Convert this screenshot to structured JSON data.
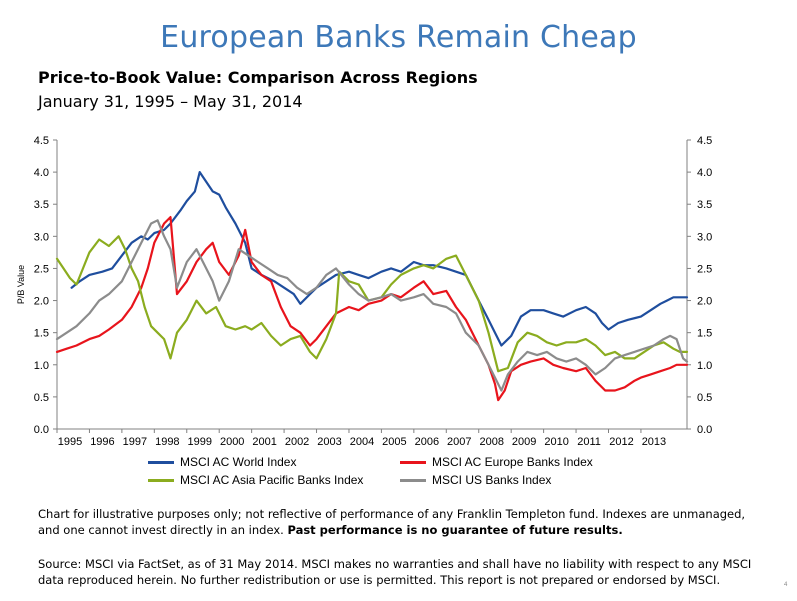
{
  "header": {
    "title": "European Banks Remain Cheap",
    "subtitle": "Price-to-Book Value: Comparison Across Regions",
    "date_range": "January 31, 1995 – May 31, 2014"
  },
  "footer": {
    "note": "Chart for illustrative purposes only; not reflective of performance of any Franklin Templeton fund. Indexes are unmanaged, and one cannot invest directly in an index.",
    "note_bold": "Past performance is no guarantee of future results.",
    "source": "Source: MSCI via FactSet, as of 31 May 2014. MSCI makes no warranties and shall have no liability with respect to any MSCI data reproduced herein. No further redistribution or use is permitted. This report is not prepared or endorsed by MSCI.",
    "page_number": "4"
  },
  "chart_data": {
    "type": "line",
    "ylabel": "P/B Value",
    "ylim": [
      0,
      4.5
    ],
    "yticks": [
      "0.0",
      "0.5",
      "1.0",
      "1.5",
      "2.0",
      "2.5",
      "3.0",
      "3.5",
      "4.0",
      "4.5"
    ],
    "xlim": [
      1995.0,
      2014.42
    ],
    "xticks": [
      "1995",
      "1996",
      "1997",
      "1998",
      "1999",
      "2000",
      "2001",
      "2002",
      "2003",
      "2004",
      "2005",
      "2006",
      "2007",
      "2008",
      "2009",
      "2010",
      "2011",
      "2012",
      "2013"
    ],
    "grid": false,
    "legend_position": "bottom",
    "series": [
      {
        "name": "MSCI AC World Index",
        "color": "#1f4e9e",
        "x": [
          1995.45,
          1995.7,
          1996.0,
          1996.4,
          1996.7,
          1997.0,
          1997.3,
          1997.6,
          1997.8,
          1998.0,
          1998.3,
          1998.5,
          1998.8,
          1999.0,
          1999.25,
          1999.4,
          1999.6,
          1999.8,
          2000.0,
          2000.2,
          2000.5,
          2000.8,
          2001.0,
          2001.3,
          2001.7,
          2002.0,
          2002.3,
          2002.5,
          2002.8,
          2003.0,
          2003.3,
          2003.6,
          2004.0,
          2004.3,
          2004.6,
          2005.0,
          2005.3,
          2005.6,
          2006.0,
          2006.3,
          2006.6,
          2007.0,
          2007.3,
          2007.6,
          2008.0,
          2008.3,
          2008.5,
          2008.7,
          2009.0,
          2009.3,
          2009.6,
          2010.0,
          2010.3,
          2010.6,
          2011.0,
          2011.3,
          2011.6,
          2011.8,
          2012.0,
          2012.3,
          2012.6,
          2013.0,
          2013.3,
          2013.6,
          2013.8,
          2014.0,
          2014.2,
          2014.42
        ],
        "values": [
          2.2,
          2.3,
          2.4,
          2.45,
          2.5,
          2.7,
          2.9,
          3.0,
          2.95,
          3.05,
          3.1,
          3.2,
          3.4,
          3.55,
          3.7,
          4.0,
          3.85,
          3.7,
          3.65,
          3.45,
          3.2,
          2.9,
          2.5,
          2.4,
          2.3,
          2.2,
          2.1,
          1.95,
          2.1,
          2.2,
          2.3,
          2.4,
          2.45,
          2.4,
          2.35,
          2.45,
          2.5,
          2.45,
          2.6,
          2.55,
          2.55,
          2.5,
          2.45,
          2.4,
          2.0,
          1.7,
          1.5,
          1.3,
          1.45,
          1.75,
          1.85,
          1.85,
          1.8,
          1.75,
          1.85,
          1.9,
          1.8,
          1.65,
          1.55,
          1.65,
          1.7,
          1.75,
          1.85,
          1.95,
          2.0,
          2.05,
          2.05,
          2.05
        ]
      },
      {
        "name": "MSCI AC Europe Banks Index",
        "color": "#e8141c",
        "x": [
          1995.0,
          1995.3,
          1995.6,
          1996.0,
          1996.3,
          1996.6,
          1997.0,
          1997.3,
          1997.6,
          1997.8,
          1998.0,
          1998.3,
          1998.5,
          1998.7,
          1999.0,
          1999.3,
          1999.6,
          1999.8,
          2000.0,
          2000.3,
          2000.6,
          2000.8,
          2001.0,
          2001.3,
          2001.6,
          2001.9,
          2002.2,
          2002.5,
          2002.8,
          2003.0,
          2003.3,
          2003.6,
          2004.0,
          2004.3,
          2004.6,
          2005.0,
          2005.3,
          2005.6,
          2006.0,
          2006.3,
          2006.6,
          2007.0,
          2007.3,
          2007.6,
          2008.0,
          2008.3,
          2008.5,
          2008.6,
          2008.8,
          2009.0,
          2009.3,
          2009.6,
          2010.0,
          2010.3,
          2010.6,
          2011.0,
          2011.3,
          2011.6,
          2011.9,
          2012.2,
          2012.5,
          2012.8,
          2013.0,
          2013.3,
          2013.6,
          2013.9,
          2014.1,
          2014.42
        ],
        "values": [
          1.2,
          1.25,
          1.3,
          1.4,
          1.45,
          1.55,
          1.7,
          1.9,
          2.2,
          2.5,
          2.9,
          3.2,
          3.3,
          2.1,
          2.3,
          2.6,
          2.8,
          2.9,
          2.6,
          2.4,
          2.7,
          3.1,
          2.6,
          2.4,
          2.3,
          1.9,
          1.6,
          1.5,
          1.3,
          1.4,
          1.6,
          1.8,
          1.9,
          1.85,
          1.95,
          2.0,
          2.1,
          2.05,
          2.2,
          2.3,
          2.1,
          2.15,
          1.9,
          1.7,
          1.3,
          1.0,
          0.7,
          0.45,
          0.6,
          0.9,
          1.0,
          1.05,
          1.1,
          1.0,
          0.95,
          0.9,
          0.95,
          0.75,
          0.6,
          0.6,
          0.65,
          0.75,
          0.8,
          0.85,
          0.9,
          0.95,
          1.0,
          1.0
        ]
      },
      {
        "name": "MSCI AC Asia Pacific Banks Index",
        "color": "#8bac1f",
        "x": [
          1995.0,
          1995.2,
          1995.4,
          1995.6,
          1995.8,
          1996.0,
          1996.3,
          1996.6,
          1996.9,
          1997.1,
          1997.3,
          1997.5,
          1997.7,
          1997.9,
          1998.1,
          1998.3,
          1998.5,
          1998.7,
          1999.0,
          1999.3,
          1999.6,
          1999.9,
          2000.2,
          2000.5,
          2000.8,
          2001.0,
          2001.3,
          2001.6,
          2001.9,
          2002.2,
          2002.5,
          2002.8,
          2003.0,
          2003.3,
          2003.6,
          2003.7,
          2004.0,
          2004.3,
          2004.6,
          2005.0,
          2005.3,
          2005.6,
          2006.0,
          2006.3,
          2006.6,
          2007.0,
          2007.3,
          2007.6,
          2008.0,
          2008.3,
          2008.6,
          2008.9,
          2009.2,
          2009.5,
          2009.8,
          2010.1,
          2010.4,
          2010.7,
          2011.0,
          2011.3,
          2011.6,
          2011.9,
          2012.2,
          2012.5,
          2012.8,
          2013.1,
          2013.4,
          2013.7,
          2014.0,
          2014.2,
          2014.42
        ],
        "values": [
          2.65,
          2.5,
          2.35,
          2.25,
          2.5,
          2.75,
          2.95,
          2.85,
          3.0,
          2.8,
          2.5,
          2.3,
          1.9,
          1.6,
          1.5,
          1.4,
          1.1,
          1.5,
          1.7,
          2.0,
          1.8,
          1.9,
          1.6,
          1.55,
          1.6,
          1.55,
          1.65,
          1.45,
          1.3,
          1.4,
          1.45,
          1.2,
          1.1,
          1.4,
          1.8,
          2.45,
          2.3,
          2.25,
          2.0,
          2.05,
          2.25,
          2.4,
          2.5,
          2.55,
          2.5,
          2.65,
          2.7,
          2.4,
          2.0,
          1.5,
          0.9,
          0.95,
          1.35,
          1.5,
          1.45,
          1.35,
          1.3,
          1.35,
          1.35,
          1.4,
          1.3,
          1.15,
          1.2,
          1.1,
          1.1,
          1.2,
          1.3,
          1.35,
          1.25,
          1.2,
          1.2
        ]
      },
      {
        "name": "MSCI US Banks Index",
        "color": "#8c8c8c",
        "x": [
          1995.0,
          1995.3,
          1995.6,
          1996.0,
          1996.3,
          1996.6,
          1997.0,
          1997.3,
          1997.6,
          1997.9,
          1998.1,
          1998.3,
          1998.5,
          1998.7,
          1999.0,
          1999.3,
          1999.6,
          1999.8,
          2000.0,
          2000.3,
          2000.6,
          2000.9,
          2001.2,
          2001.5,
          2001.8,
          2002.1,
          2002.4,
          2002.7,
          2003.0,
          2003.3,
          2003.6,
          2004.0,
          2004.3,
          2004.6,
          2005.0,
          2005.3,
          2005.6,
          2006.0,
          2006.3,
          2006.6,
          2007.0,
          2007.3,
          2007.6,
          2008.0,
          2008.3,
          2008.5,
          2008.7,
          2008.9,
          2009.2,
          2009.5,
          2009.8,
          2010.1,
          2010.4,
          2010.7,
          2011.0,
          2011.3,
          2011.6,
          2011.9,
          2012.2,
          2012.5,
          2012.8,
          2013.1,
          2013.4,
          2013.7,
          2013.9,
          2014.1,
          2014.3,
          2014.42
        ],
        "values": [
          1.4,
          1.5,
          1.6,
          1.8,
          2.0,
          2.1,
          2.3,
          2.6,
          2.9,
          3.2,
          3.25,
          3.0,
          2.8,
          2.2,
          2.6,
          2.8,
          2.5,
          2.3,
          2.0,
          2.3,
          2.8,
          2.7,
          2.6,
          2.5,
          2.4,
          2.35,
          2.2,
          2.1,
          2.2,
          2.4,
          2.5,
          2.25,
          2.1,
          2.0,
          2.05,
          2.1,
          2.0,
          2.05,
          2.1,
          1.95,
          1.9,
          1.8,
          1.5,
          1.3,
          1.0,
          0.8,
          0.6,
          0.85,
          1.05,
          1.2,
          1.15,
          1.2,
          1.1,
          1.05,
          1.1,
          1.0,
          0.85,
          0.95,
          1.1,
          1.15,
          1.2,
          1.25,
          1.3,
          1.4,
          1.45,
          1.4,
          1.1,
          1.05
        ]
      }
    ]
  }
}
